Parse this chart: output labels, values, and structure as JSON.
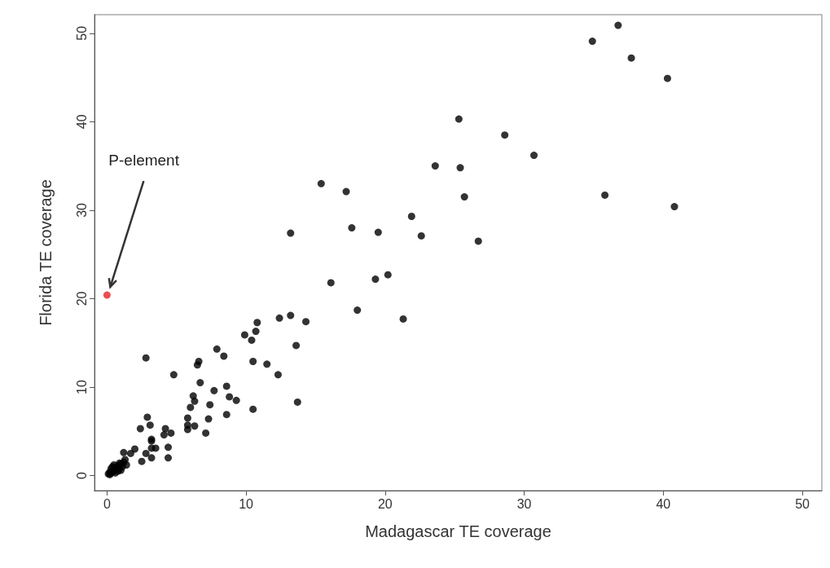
{
  "chart_data": {
    "type": "scatter",
    "xlabel": "Madagascar TE coverage",
    "ylabel": "Florida TE coverage",
    "xlim": [
      -0.9,
      51.4
    ],
    "ylim": [
      -1.7,
      52.1
    ],
    "xticks": [
      0,
      10,
      20,
      30,
      40,
      50
    ],
    "yticks": [
      0,
      10,
      20,
      30,
      40,
      50
    ],
    "grid": false,
    "marker": "circle",
    "annotations": [
      "P-element"
    ],
    "series": [
      {
        "color": "#000000",
        "x": [
          36.75,
          34.9,
          37.7,
          40.3,
          25.3,
          28.6,
          30.7,
          23.6,
          25.4,
          15.4,
          17.2,
          25.7,
          35.8,
          40.8,
          13.2,
          17.6,
          21.9,
          19.5,
          22.6,
          26.7,
          16.1,
          19.3,
          20.2,
          18.0,
          21.3,
          12.4,
          13.2,
          14.3,
          10.8,
          10.7,
          9.9,
          10.4,
          13.6,
          7.9,
          8.4,
          10.5,
          11.5,
          12.3,
          13.7,
          10.5,
          6.6,
          6.5,
          6.7,
          7.7,
          8.6,
          8.8,
          9.3,
          7.4,
          8.6,
          7.3,
          6.2,
          6.3,
          2.8,
          4.8,
          2.9,
          3.1,
          2.4,
          4.2,
          4.1,
          4.6,
          3.2,
          3.2,
          3.2,
          3.5,
          4.4,
          2.8,
          3.2,
          4.4,
          2.5,
          2.0,
          1.7,
          1.2,
          5.8,
          5.8,
          5.8,
          6.3,
          7.1,
          6.0,
          0.1,
          0.2,
          0.3,
          0.5,
          0.6,
          0.8,
          0.9,
          1.0,
          1.1,
          1.2,
          1.4,
          0.3,
          0.5,
          0.2,
          0.8,
          1.3,
          0.6,
          1.0,
          0.4,
          0.9
        ],
        "values": [
          50.9,
          49.1,
          47.2,
          44.9,
          40.3,
          38.5,
          36.2,
          35.0,
          34.8,
          33.0,
          32.1,
          31.5,
          31.7,
          30.4,
          27.4,
          28.0,
          29.3,
          27.5,
          27.1,
          26.5,
          21.8,
          22.2,
          22.7,
          18.7,
          17.7,
          17.8,
          18.1,
          17.4,
          17.3,
          16.3,
          15.9,
          15.3,
          14.7,
          14.3,
          13.5,
          12.9,
          12.6,
          11.4,
          8.3,
          7.5,
          12.9,
          12.5,
          10.5,
          9.6,
          10.1,
          8.9,
          8.5,
          8.0,
          6.9,
          6.4,
          9.0,
          8.4,
          13.3,
          11.4,
          6.6,
          5.7,
          5.3,
          5.3,
          4.6,
          4.8,
          4.1,
          3.9,
          3.1,
          3.1,
          3.2,
          2.5,
          2.0,
          2.0,
          1.6,
          3.0,
          2.5,
          2.6,
          6.5,
          5.7,
          5.2,
          5.6,
          4.8,
          7.7,
          0.2,
          0.4,
          0.3,
          0.5,
          0.9,
          1.1,
          0.8,
          1.3,
          1.0,
          1.5,
          1.2,
          0.8,
          1.2,
          0.1,
          0.5,
          1.8,
          0.3,
          0.6,
          1.0,
          1.4
        ]
      },
      {
        "color": "#e8202a",
        "x": [
          0
        ],
        "values": [
          20.4
        ]
      }
    ]
  }
}
